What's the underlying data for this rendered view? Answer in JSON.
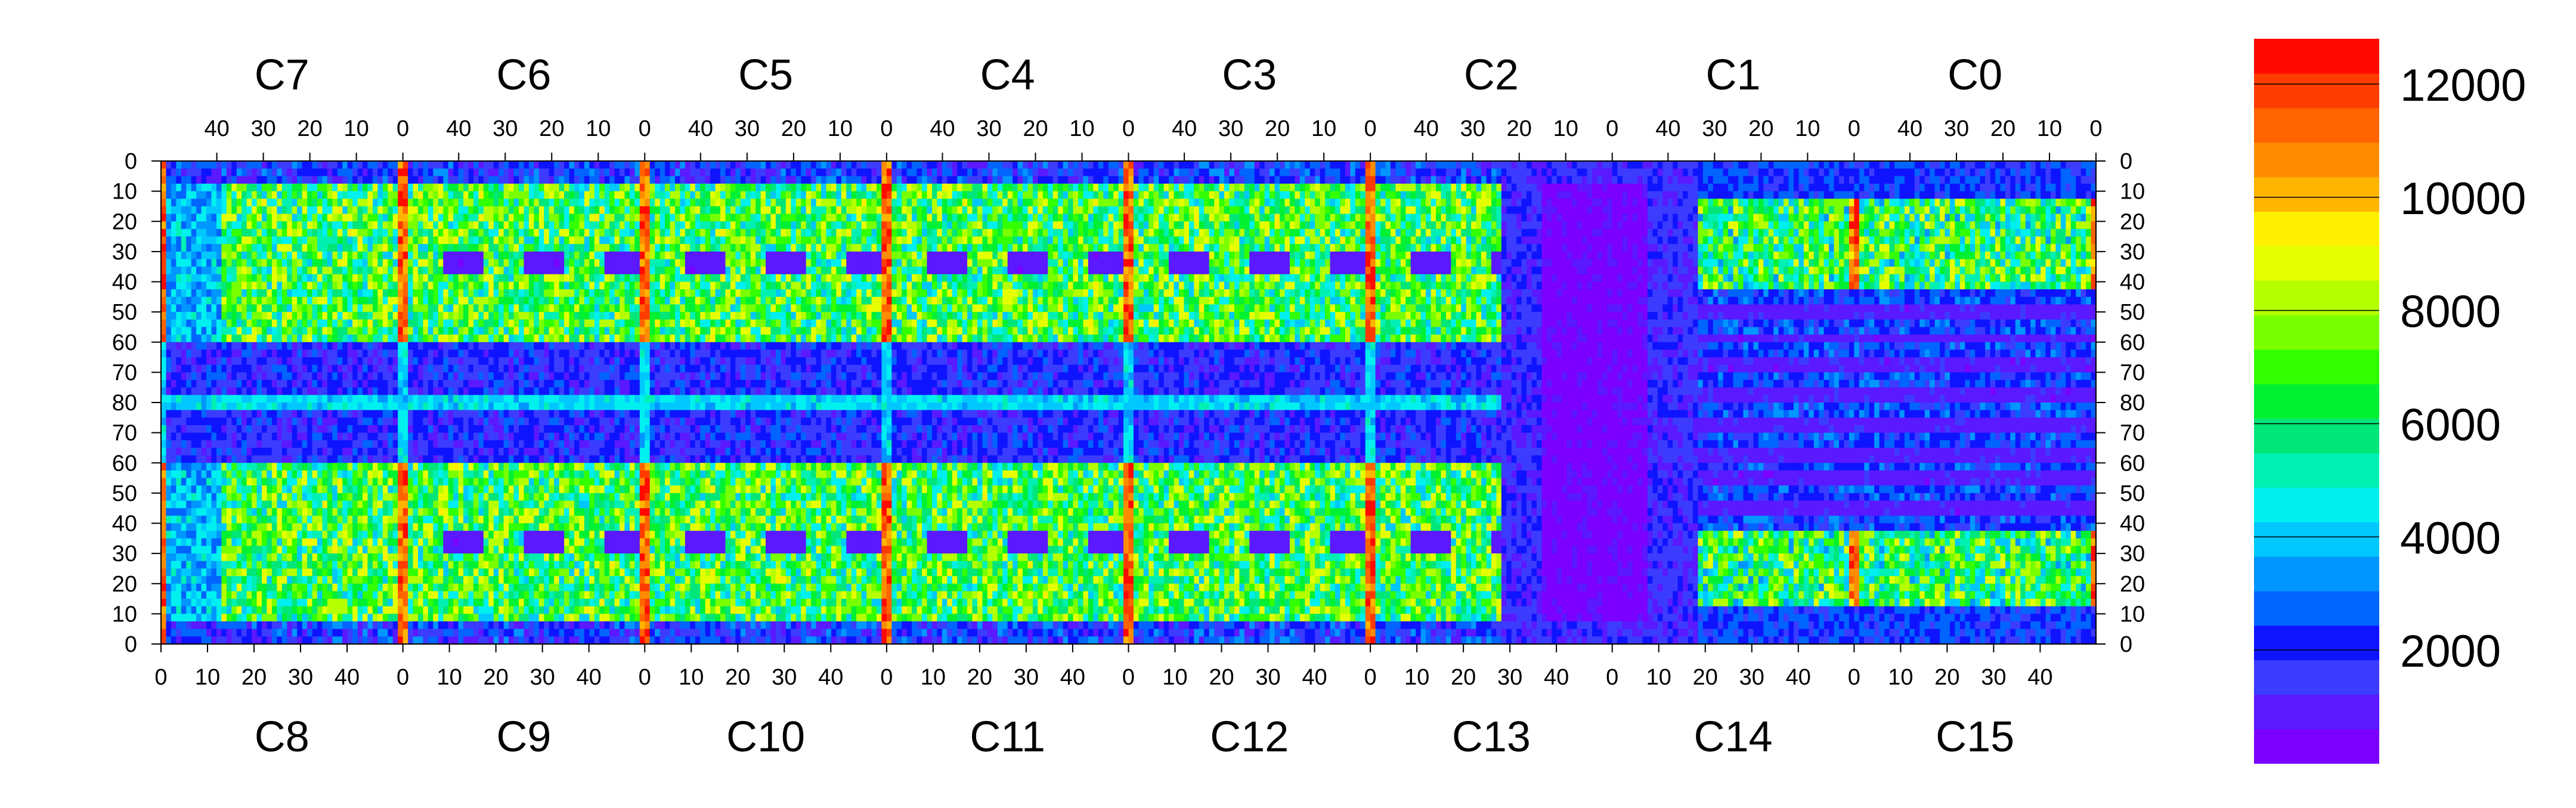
{
  "chart_data": {
    "type": "heatmap",
    "title": "",
    "xlabel": "",
    "ylabel": "",
    "top_chip_labels": [
      "C7",
      "C6",
      "C5",
      "C4",
      "C3",
      "C2",
      "C1",
      "C0"
    ],
    "bottom_chip_labels": [
      "C8",
      "C9",
      "C10",
      "C11",
      "C12",
      "C13",
      "C14",
      "C15"
    ],
    "top_x_ticks": [
      "40",
      "30",
      "20",
      "10",
      "0"
    ],
    "bottom_x_ticks": [
      "0",
      "10",
      "20",
      "30",
      "40"
    ],
    "y_ticks": [
      "0",
      "10",
      "20",
      "30",
      "40",
      "50",
      "60",
      "70",
      "80",
      "70",
      "60",
      "50",
      "40",
      "30",
      "20",
      "10",
      "0"
    ],
    "columns_per_chip": 52,
    "rows_per_half": 80,
    "colorbar": {
      "range": [
        0,
        12800
      ],
      "tick_labels": [
        "2000",
        "4000",
        "6000",
        "8000",
        "10000",
        "12000"
      ],
      "tick_values": [
        2000,
        4000,
        6000,
        8000,
        10000,
        12000
      ],
      "colors": [
        "#7b00ff",
        "#5a19ff",
        "#3c3cff",
        "#0f14ff",
        "#0064ff",
        "#0096ff",
        "#00c8ff",
        "#00f0f0",
        "#00f0b4",
        "#00e678",
        "#00f032",
        "#32ff00",
        "#78ff00",
        "#b4ff00",
        "#e6ff00",
        "#fff000",
        "#ffb400",
        "#ff8c00",
        "#ff6400",
        "#ff3c00",
        "#ff0a00"
      ]
    },
    "regions": [
      {
        "area": "left chips C7-C5 / C8-C10 top and bottom bands",
        "value_range": [
          4000,
          9000
        ]
      },
      {
        "area": "chip boundary columns (0 edges)",
        "value_range": [
          10000,
          12800
        ]
      },
      {
        "area": "central row band (rows 65-80)",
        "value_range": [
          800,
          3000
        ]
      },
      {
        "area": "C2/C13 region",
        "value_range": [
          200,
          1000
        ]
      },
      {
        "area": "C1/C0 and C14/C15 striped region",
        "value_range": [
          500,
          6000
        ]
      }
    ]
  }
}
